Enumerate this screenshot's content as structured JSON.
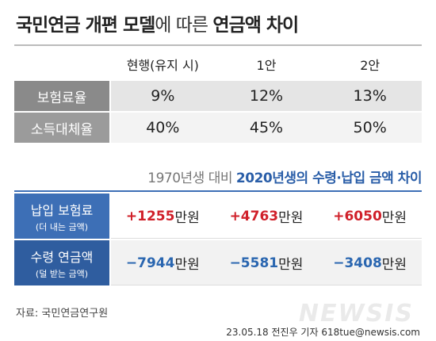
{
  "title_parts": [
    {
      "text": "국민연금 개편 모델",
      "bold": true
    },
    {
      "text": "에 따른 ",
      "bold": false
    },
    {
      "text": "연금액 차이",
      "bold": true
    }
  ],
  "table1": {
    "columns": [
      "현행(유지 시)",
      "1안",
      "2안"
    ],
    "rows": [
      {
        "label": "보험료율",
        "values": [
          "9%",
          "12%",
          "13%"
        ]
      },
      {
        "label": "소득대체율",
        "values": [
          "40%",
          "45%",
          "50%"
        ]
      }
    ]
  },
  "subtitle_parts": [
    {
      "text": "1970년생 대비 ",
      "bold": false
    },
    {
      "text": "2020년생의 수령·납입 금액 차이",
      "bold": true
    }
  ],
  "table2": {
    "unit": "만원",
    "rows": [
      {
        "label": "납입 보험료",
        "sublabel": "(더 내는 금액)",
        "color": "#d0202a",
        "values": [
          "+1255",
          "+4763",
          "+6050"
        ]
      },
      {
        "label": "수령 연금액",
        "sublabel": "(덜 받는 금액)",
        "color": "#2a66b0",
        "values": [
          "−7944",
          "−5581",
          "−3408"
        ]
      }
    ]
  },
  "source": "자료: 국민연금연구원",
  "credit": "23.05.18 전진우 기자 618tue@newsis.com",
  "watermark": "NEWSIS"
}
